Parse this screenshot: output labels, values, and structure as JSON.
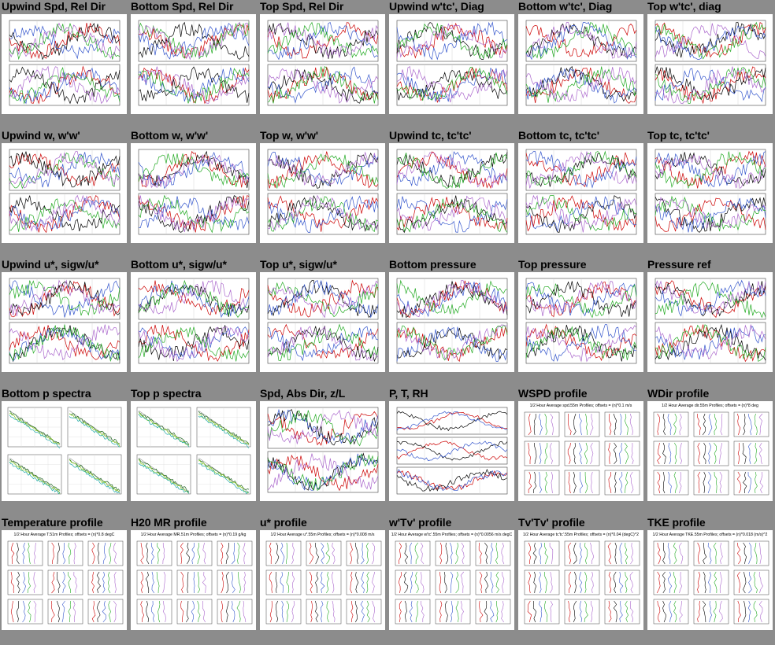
{
  "colors": {
    "page_background": "#8c8c8c",
    "thumbnail_background": "#ffffff",
    "title_text": "#000000"
  },
  "grid": {
    "columns": 6,
    "rows": 5,
    "cells": [
      {
        "title": "Upwind Spd, Rel Dir",
        "thumb_kind": "two-panel"
      },
      {
        "title": "Bottom Spd, Rel Dir",
        "thumb_kind": "two-panel"
      },
      {
        "title": "Top Spd, Rel Dir",
        "thumb_kind": "two-panel"
      },
      {
        "title": "Upwind w'tc', Diag",
        "thumb_kind": "two-panel"
      },
      {
        "title": "Bottom w'tc', Diag",
        "thumb_kind": "two-panel"
      },
      {
        "title": "Top w'tc', diag",
        "thumb_kind": "two-panel"
      },
      {
        "title": "Upwind w, w'w'",
        "thumb_kind": "two-panel"
      },
      {
        "title": "Bottom w, w'w'",
        "thumb_kind": "two-panel"
      },
      {
        "title": "Top w, w'w'",
        "thumb_kind": "two-panel"
      },
      {
        "title": "Upwind tc, tc'tc'",
        "thumb_kind": "two-panel"
      },
      {
        "title": "Bottom tc, tc'tc'",
        "thumb_kind": "two-panel"
      },
      {
        "title": "Top tc, tc'tc'",
        "thumb_kind": "two-panel"
      },
      {
        "title": "Upwind u*, sigw/u*",
        "thumb_kind": "two-panel"
      },
      {
        "title": "Bottom u*, sigw/u*",
        "thumb_kind": "two-panel"
      },
      {
        "title": "Top u*, sigw/u*",
        "thumb_kind": "two-panel"
      },
      {
        "title": "Bottom pressure",
        "thumb_kind": "two-panel"
      },
      {
        "title": "Top pressure",
        "thumb_kind": "two-panel"
      },
      {
        "title": "Pressure ref",
        "thumb_kind": "two-panel"
      },
      {
        "title": "Bottom p spectra",
        "thumb_kind": "spectra"
      },
      {
        "title": "Top p spectra",
        "thumb_kind": "spectra"
      },
      {
        "title": "Spd, Abs Dir, z/L",
        "thumb_kind": "two-panel"
      },
      {
        "title": "P, T, RH",
        "thumb_kind": "three-panel"
      },
      {
        "title": "WSPD profile",
        "thumb_kind": "profile",
        "header": "1/2 Hour Average spd.55m Profiles; offsets = (n)*0.1 m/s"
      },
      {
        "title": "WDir profile",
        "thumb_kind": "profile",
        "header": "1/2 Hour Average dir.55m Profiles; offsets = (n)*8 deg"
      },
      {
        "title": "Temperature profile",
        "thumb_kind": "profile",
        "header": "1/2 Hour Average T.51m Profiles; offsets = (n)*0.8 degC"
      },
      {
        "title": "H20 MR profile",
        "thumb_kind": "profile",
        "header": "1/2 Hour Average MR.51m Profiles; offsets = (n)*0.19 g/kg"
      },
      {
        "title": "u* profile",
        "thumb_kind": "profile",
        "header": "1/2 Hour Average u*.55m Profiles; offsets = (n)*0.008 m/s"
      },
      {
        "title": "w'Tv' profile",
        "thumb_kind": "profile",
        "header": "1/2 Hour Average w'tc'.55m Profiles; offsets = (n)*0.0056 m/s degC"
      },
      {
        "title": "Tv'Tv' profile",
        "thumb_kind": "profile",
        "header": "1/2 Hour Average tc'tc'.55m Profiles; offsets = (n)*0.04 (degC)^2"
      },
      {
        "title": "TKE profile",
        "thumb_kind": "profile",
        "header": "1/2 Hour Average TKE.55m Profiles; offsets = (n)*0.018 (m/s)^2"
      }
    ]
  }
}
